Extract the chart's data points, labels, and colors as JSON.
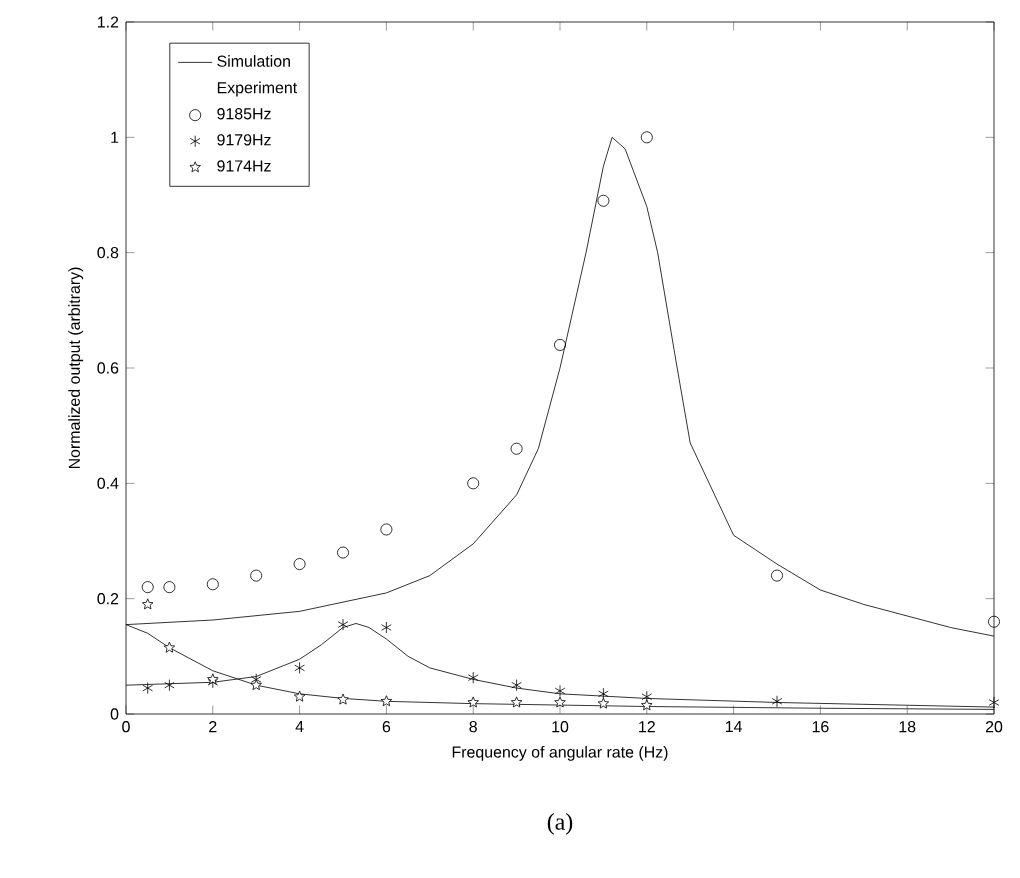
{
  "chart_data": {
    "type": "line",
    "xlabel": "Frequency of angular rate (Hz)",
    "ylabel": "Normalized output   (arbitrary)",
    "legend_title": "Experiment",
    "annotations": [
      "(a)"
    ],
    "xlim": [
      0,
      20
    ],
    "ylim": [
      0,
      1.2
    ],
    "xticks": [
      0,
      2,
      4,
      6,
      8,
      10,
      12,
      14,
      16,
      18,
      20
    ],
    "yticks": [
      0,
      0.2,
      0.4,
      0.6,
      0.8,
      1,
      1.2
    ],
    "grid": false,
    "legend": "top left",
    "series": [
      {
        "name": "Simulation",
        "color": "#000000",
        "marker": "none",
        "x": [
          0,
          2,
          4,
          6,
          7,
          8,
          9,
          9.5,
          10,
          10.6,
          11,
          11.2,
          11.5,
          12,
          12.25,
          12.7,
          13,
          14,
          15,
          16,
          17,
          18,
          19,
          20
        ],
        "values": [
          0.155,
          0.163,
          0.178,
          0.21,
          0.24,
          0.295,
          0.38,
          0.46,
          0.6,
          0.8,
          0.95,
          1.0,
          0.98,
          0.88,
          0.8,
          0.6,
          0.47,
          0.31,
          0.26,
          0.215,
          0.19,
          0.17,
          0.15,
          0.135
        ]
      },
      {
        "color": "#000000",
        "marker": "none",
        "x": [
          0,
          2,
          3,
          4,
          4.5,
          5,
          5.3,
          5.6,
          6,
          6.5,
          7,
          8,
          9,
          10,
          12,
          15,
          20
        ],
        "values": [
          0.05,
          0.055,
          0.065,
          0.095,
          0.12,
          0.15,
          0.157,
          0.15,
          0.13,
          0.1,
          0.08,
          0.06,
          0.045,
          0.035,
          0.027,
          0.02,
          0.012
        ]
      },
      {
        "color": "#000000",
        "marker": "none",
        "x": [
          0,
          0.5,
          1,
          2,
          3,
          4,
          5,
          6,
          8,
          12,
          16,
          20
        ],
        "values": [
          0.155,
          0.14,
          0.115,
          0.075,
          0.05,
          0.035,
          0.027,
          0.022,
          0.018,
          0.013,
          0.01,
          0.008
        ]
      },
      {
        "name": "9185Hz",
        "type": "scatter",
        "color": "#000000",
        "marker": "circle",
        "x": [
          0.5,
          1,
          2,
          3,
          4,
          5,
          6,
          8,
          9,
          10,
          11,
          12,
          15,
          20
        ],
        "values": [
          0.22,
          0.22,
          0.225,
          0.24,
          0.26,
          0.28,
          0.32,
          0.4,
          0.46,
          0.64,
          0.89,
          1.0,
          0.24,
          0.16
        ]
      },
      {
        "name": "9179Hz",
        "type": "scatter",
        "color": "#000000",
        "marker": "cross",
        "x": [
          0.5,
          1,
          2,
          3,
          4,
          5,
          6,
          8,
          9,
          10,
          11,
          12,
          15,
          20
        ],
        "values": [
          0.045,
          0.05,
          0.055,
          0.06,
          0.08,
          0.155,
          0.15,
          0.063,
          0.05,
          0.04,
          0.035,
          0.03,
          0.022,
          0.02
        ]
      },
      {
        "name": "9174Hz",
        "type": "scatter",
        "color": "#000000",
        "marker": "star",
        "x": [
          0.5,
          1,
          2,
          3,
          4,
          5,
          6,
          8,
          9,
          10,
          11,
          12
        ],
        "values": [
          0.19,
          0.115,
          0.06,
          0.05,
          0.03,
          0.025,
          0.022,
          0.02,
          0.02,
          0.02,
          0.018,
          0.015
        ]
      }
    ]
  }
}
